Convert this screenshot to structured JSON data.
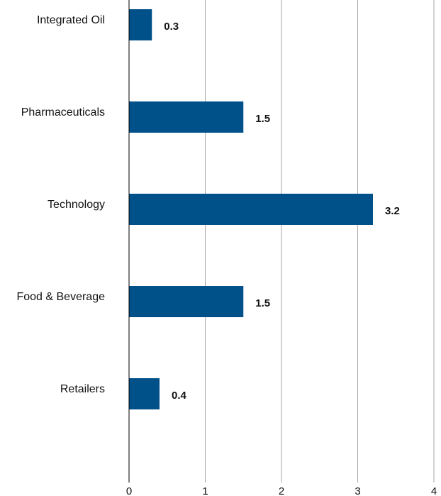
{
  "chart_data": {
    "type": "bar",
    "orientation": "horizontal",
    "categories": [
      "Integrated Oil",
      "Pharmaceuticals",
      "Technology",
      "Food & Beverage",
      "Retailers"
    ],
    "values": [
      0.3,
      1.5,
      3.2,
      1.5,
      0.4
    ],
    "value_labels": [
      "0.3",
      "1.5",
      "3.2",
      "1.5",
      "0.4"
    ],
    "x_ticks": [
      "0",
      "1",
      "2",
      "3",
      "4"
    ],
    "xlim": [
      0,
      4
    ],
    "grid": "vertical",
    "bar_color": "#00508a",
    "grid_color": "#a6a6a6",
    "axis_color": "#000000"
  }
}
